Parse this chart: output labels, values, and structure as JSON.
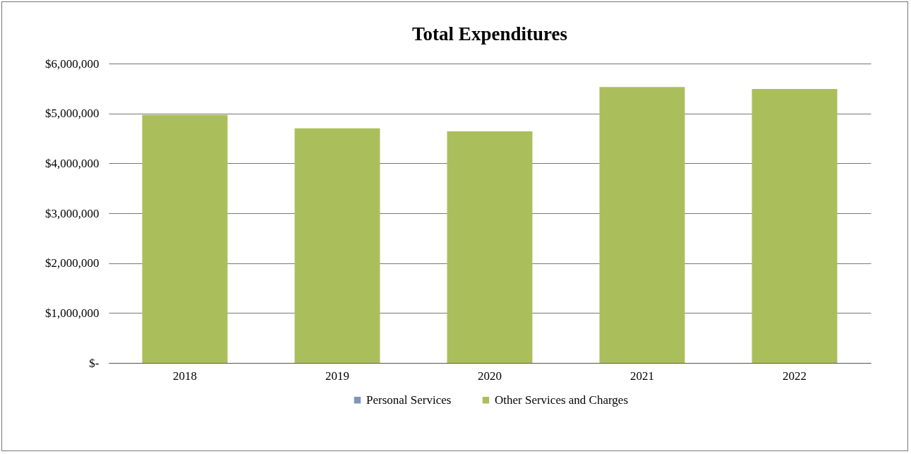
{
  "chart_data": {
    "type": "bar",
    "title": "Total Expenditures",
    "categories": [
      "2018",
      "2019",
      "2020",
      "2021",
      "2022"
    ],
    "series": [
      {
        "name": "Personal Services",
        "color": "#7f95b5",
        "values": [
          0,
          0,
          0,
          0,
          0
        ]
      },
      {
        "name": "Other Services and Charges",
        "color": "#aabf5c",
        "values": [
          4970000,
          4700000,
          4640000,
          5530000,
          5490000
        ]
      }
    ],
    "ylim": [
      0,
      6000000
    ],
    "yticks": [
      {
        "value": 0,
        "label": "$-"
      },
      {
        "value": 1000000,
        "label": "$1,000,000"
      },
      {
        "value": 2000000,
        "label": "$2,000,000"
      },
      {
        "value": 3000000,
        "label": "$3,000,000"
      },
      {
        "value": 4000000,
        "label": "$4,000,000"
      },
      {
        "value": 5000000,
        "label": "$5,000,000"
      },
      {
        "value": 6000000,
        "label": "$6,000,000"
      }
    ],
    "grid": "y",
    "legend": "bottom"
  }
}
